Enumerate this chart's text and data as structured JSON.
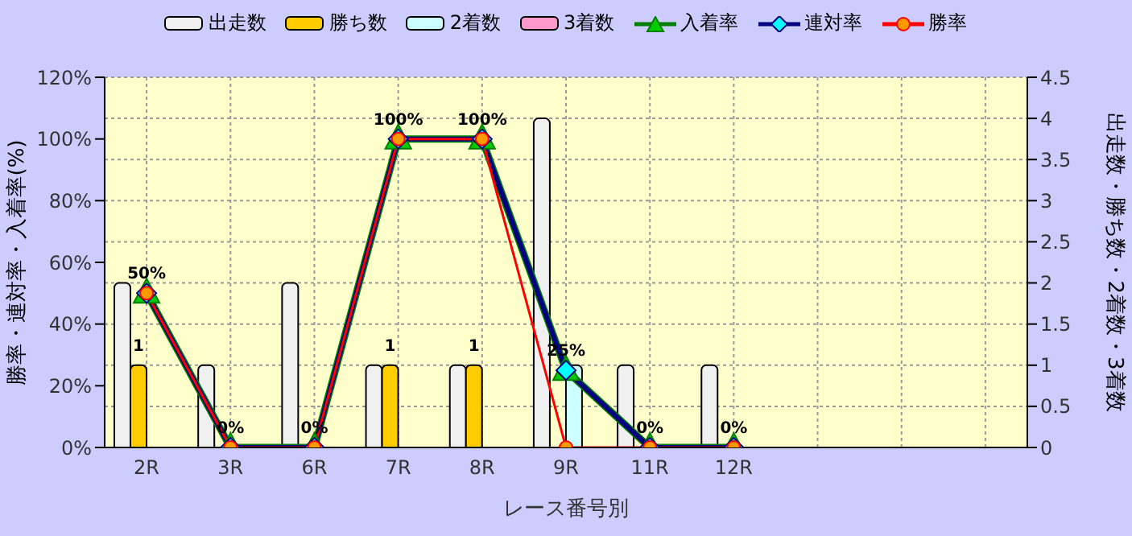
{
  "chart_data": {
    "type": "bar",
    "xlabel": "レース番号別",
    "ylabel": "勝率・連対率・入着率(%)",
    "y2label": "出走数・勝ち数・2着数・3着数",
    "categories": [
      "2R",
      "3R",
      "6R",
      "7R",
      "8R",
      "9R",
      "11R",
      "12R",
      null,
      null,
      null
    ],
    "series": [
      {
        "name": "出走数",
        "axis": "y2",
        "color": "#f0f0f0",
        "values": [
          2,
          1,
          2,
          1,
          1,
          4,
          1,
          1,
          null,
          null,
          null
        ]
      },
      {
        "name": "勝ち数",
        "axis": "y2",
        "color": "#ffcc00",
        "values": [
          1,
          0,
          0,
          1,
          1,
          0,
          0,
          0,
          null,
          null,
          null
        ],
        "value_labels": [
          "1",
          null,
          null,
          "1",
          "1",
          null,
          null,
          null,
          null,
          null,
          null
        ]
      },
      {
        "name": "2着数",
        "axis": "y2",
        "color": "#ccffff",
        "values": [
          0,
          0,
          0,
          0,
          0,
          1,
          0,
          0,
          null,
          null,
          null
        ]
      },
      {
        "name": "3着数",
        "axis": "y2",
        "color": "#ff99cc",
        "values": [
          0,
          0,
          0,
          0,
          0,
          0,
          0,
          0,
          null,
          null,
          null
        ]
      },
      {
        "name": "入着率",
        "type": "line",
        "color": "#008000",
        "marker": "triangle",
        "values": [
          50,
          0,
          0,
          100,
          100,
          25,
          0,
          0,
          null,
          null,
          null
        ],
        "value_labels": [
          "50%",
          "0%",
          "0%",
          "100%",
          "100%",
          "25%",
          "0%",
          "0%",
          null,
          null,
          null
        ]
      },
      {
        "name": "連対率",
        "type": "line",
        "color": "#000080",
        "marker": "diamond",
        "values": [
          50,
          0,
          0,
          100,
          100,
          25,
          0,
          0,
          null,
          null,
          null
        ]
      },
      {
        "name": "勝率",
        "type": "line",
        "color": "#ff0000",
        "marker": "circle",
        "values": [
          50,
          0,
          0,
          100,
          100,
          0,
          0,
          0,
          null,
          null,
          null
        ]
      }
    ],
    "ylim": [
      0,
      120
    ],
    "yticks": [
      {
        "value": 0,
        "label": "0%"
      },
      {
        "value": 20,
        "label": "20%"
      },
      {
        "value": 40,
        "label": "40%"
      },
      {
        "value": 60,
        "label": "60%"
      },
      {
        "value": 80,
        "label": "80%"
      },
      {
        "value": 100,
        "label": "100%"
      },
      {
        "value": 120,
        "label": "120%"
      }
    ],
    "y2lim": [
      0,
      4.5
    ],
    "y2ticks": [
      0,
      0.5,
      1,
      1.5,
      2,
      2.5,
      3,
      3.5,
      4,
      4.5
    ],
    "grid": true,
    "legend": "top"
  }
}
